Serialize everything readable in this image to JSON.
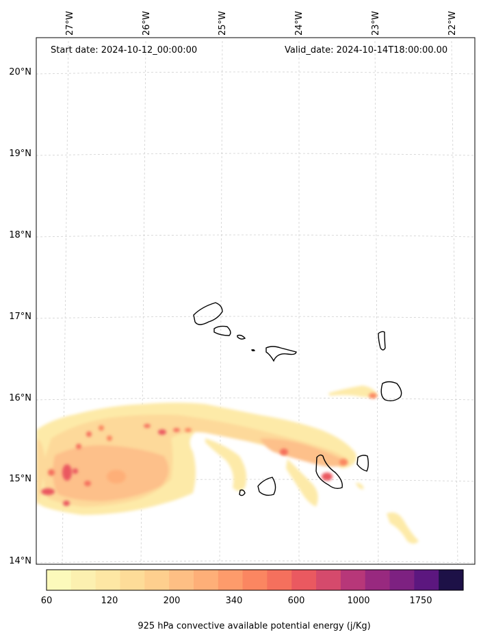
{
  "header": {
    "start_date": "Start date: 2024-10-12_00:00:00",
    "valid_date": "Valid_date: 2024-10-14T18:00:00.00"
  },
  "map": {
    "longitudes": [
      {
        "value": -27,
        "label": "27°W"
      },
      {
        "value": -26,
        "label": "26°W"
      },
      {
        "value": -25,
        "label": "25°W"
      },
      {
        "value": -24,
        "label": "24°W"
      },
      {
        "value": -23,
        "label": "23°W"
      },
      {
        "value": -22,
        "label": "22°W"
      }
    ],
    "latitudes": [
      {
        "value": 20,
        "label": "20°N"
      },
      {
        "value": 19,
        "label": "19°N"
      },
      {
        "value": 18,
        "label": "18°N"
      },
      {
        "value": 17,
        "label": "17°N"
      },
      {
        "value": 16,
        "label": "16°N"
      },
      {
        "value": 15,
        "label": "15°N"
      },
      {
        "value": 14,
        "label": "14°N"
      }
    ],
    "gridlines": true,
    "coastline_color": "#000000",
    "gridline_color": "#d0d0d0"
  },
  "colorbar": {
    "title": "925 hPa convective available potential energy (j/Kg)",
    "tick_labels": [
      "60",
      "120",
      "200",
      "340",
      "600",
      "1000",
      "1750"
    ],
    "colors": [
      "#fcf9bb",
      "#fcf0b0",
      "#fde7a4",
      "#fddc98",
      "#fecf8e",
      "#febf84",
      "#feaf78",
      "#fd9b6b",
      "#fb8661",
      "#f5705d",
      "#ea5960",
      "#d54a6c",
      "#b73779",
      "#98297f",
      "#7d2181",
      "#5c177f",
      "#1d1147"
    ]
  }
}
